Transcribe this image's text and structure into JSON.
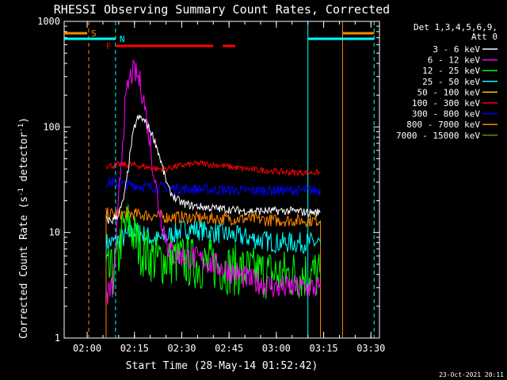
{
  "chart_data": {
    "type": "line",
    "title": "RHESSI Observing Summary Count Rates, Corrected",
    "ylabel": "Corrected Count Rate (s",
    "ylabel_sup": "-1",
    "ylabel_tail": " detector",
    "ylabel_sup2": "-1",
    "ylabel_close": ")",
    "xlabel": "Start Time (28-May-14 01:52:42)",
    "footer": "23-Oct-2021 20:11",
    "yscale": "log",
    "ylim": [
      1,
      1000
    ],
    "xlim": [
      "01:52:42",
      "03:32:42"
    ],
    "yticks": [
      {
        "value": 1,
        "label": "1"
      },
      {
        "value": 10,
        "label": "10"
      },
      {
        "value": 100,
        "label": "100"
      },
      {
        "value": 1000,
        "label": "1000"
      }
    ],
    "xticks": [
      {
        "value": "02:00",
        "label": "02:00"
      },
      {
        "value": "02:15",
        "label": "02:15"
      },
      {
        "value": "02:30",
        "label": "02:30"
      },
      {
        "value": "02:45",
        "label": "02:45"
      },
      {
        "value": "03:00",
        "label": "03:00"
      },
      {
        "value": "03:15",
        "label": "03:15"
      },
      {
        "value": "03:30",
        "label": "03:30"
      }
    ],
    "legend_header": [
      "Det 1,3,4,5,6,9,",
      "Att 0"
    ],
    "legend_position": "right",
    "series": [
      {
        "name": "3 - 6 keV",
        "color": "#ffffff",
        "x": [
          "02:06",
          "02:08",
          "02:09",
          "02:10",
          "02:11",
          "02:12",
          "02:13",
          "02:14",
          "02:15",
          "02:16",
          "02:17",
          "02:18",
          "02:19",
          "02:20",
          "02:21",
          "02:22",
          "02:23",
          "02:24",
          "02:25",
          "02:26",
          "02:28",
          "02:30",
          "02:33",
          "02:36",
          "02:40",
          "02:45",
          "02:50",
          "02:55",
          "03:00",
          "03:05",
          "03:10",
          "03:14"
        ],
        "y": [
          13,
          13,
          14,
          15,
          18,
          24,
          40,
          68,
          100,
          120,
          122,
          115,
          105,
          92,
          80,
          66,
          52,
          40,
          31,
          25,
          21,
          19,
          18,
          17.5,
          17,
          16.5,
          16,
          16,
          16,
          16,
          15.5,
          15.5
        ]
      },
      {
        "name": "6 - 12 keV",
        "color": "#ff00ff",
        "x": [
          "02:06",
          "02:08",
          "02:09",
          "02:10",
          "02:11",
          "02:12",
          "02:13",
          "02:14",
          "02:15",
          "02:16",
          "02:17",
          "02:18",
          "02:19",
          "02:20",
          "02:21",
          "02:22",
          "02:23",
          "02:24",
          "02:25",
          "02:26",
          "02:27",
          "02:28",
          "02:30",
          "02:33",
          "02:36",
          "02:40",
          "02:44",
          "02:48",
          "02:52",
          "02:56",
          "03:00",
          "03:05",
          "03:10",
          "03:14"
        ],
        "y": [
          2.5,
          3,
          6,
          20,
          60,
          150,
          250,
          315,
          330,
          300,
          250,
          180,
          110,
          70,
          40,
          25,
          16,
          12,
          9,
          7,
          6.5,
          6,
          6,
          5.8,
          5.5,
          5,
          4.5,
          4,
          3.5,
          3.3,
          3,
          3,
          3,
          3
        ]
      },
      {
        "name": "12 - 25 keV",
        "color": "#00ff00",
        "x": [
          "02:06",
          "02:08",
          "02:10",
          "02:11",
          "02:12",
          "02:13",
          "02:14",
          "02:15",
          "02:16",
          "02:17",
          "02:18",
          "02:20",
          "02:22",
          "02:25",
          "02:30",
          "02:35",
          "02:40",
          "02:45",
          "02:50",
          "02:55",
          "03:00",
          "03:05",
          "03:10",
          "03:14"
        ],
        "y": [
          4,
          4,
          6,
          10,
          11,
          12,
          11,
          9,
          8,
          7,
          6.5,
          6,
          5.5,
          5.5,
          5.5,
          5,
          5,
          4.5,
          4.3,
          4.1,
          4,
          4,
          4,
          4
        ]
      },
      {
        "name": "25 - 50 keV",
        "color": "#00ffff",
        "x": [
          "02:06",
          "02:08",
          "02:10",
          "02:12",
          "02:14",
          "02:16",
          "02:18",
          "02:20",
          "02:22",
          "02:25",
          "02:28",
          "02:32",
          "02:36",
          "02:40",
          "02:45",
          "02:50",
          "02:55",
          "03:00",
          "03:05",
          "03:10",
          "03:14"
        ],
        "y": [
          8,
          8,
          8.5,
          9,
          10,
          10,
          9.5,
          9,
          8.5,
          9,
          10,
          11,
          10.5,
          10,
          9.5,
          9,
          8.5,
          8,
          8,
          8,
          8
        ]
      },
      {
        "name": "50 - 100 keV",
        "color": "#ffcc00",
        "x": [],
        "y": []
      },
      {
        "name": "100 - 300 keV",
        "color": "#ff0000",
        "x": [
          "02:06",
          "02:08",
          "02:10",
          "02:12",
          "02:14",
          "02:16",
          "02:18",
          "02:20",
          "02:22",
          "02:25",
          "02:28",
          "02:32",
          "02:36",
          "02:40",
          "02:45",
          "02:50",
          "02:55",
          "03:00",
          "03:05",
          "03:10",
          "03:14"
        ],
        "y": [
          43,
          43,
          44,
          44,
          44,
          43,
          42,
          41,
          40,
          40,
          42,
          44,
          45,
          44,
          42,
          40,
          39,
          38,
          37,
          37,
          37
        ]
      },
      {
        "name": "300 - 800 keV",
        "color": "#0000ff",
        "x": [
          "02:06",
          "02:08",
          "02:10",
          "02:14",
          "02:20",
          "02:25",
          "02:30",
          "02:40",
          "02:50",
          "03:00",
          "03:05",
          "03:10",
          "03:14"
        ],
        "y": [
          30,
          30,
          29,
          28,
          27,
          26.5,
          26,
          25.5,
          25,
          25,
          25,
          25,
          25
        ]
      },
      {
        "name": "800 - 7000 keV",
        "color": "#ff8800",
        "x": [
          "02:06",
          "02:08",
          "02:10",
          "02:14",
          "02:20",
          "02:25",
          "02:30",
          "02:40",
          "02:50",
          "03:00",
          "03:05",
          "03:10",
          "03:14"
        ],
        "y": [
          15,
          15,
          15,
          15,
          14.5,
          14,
          14,
          13.5,
          13.5,
          13,
          13,
          13,
          13
        ]
      },
      {
        "name": "7000 - 15000 keV",
        "color": "#808000",
        "x": [],
        "y": []
      }
    ],
    "flags": [
      {
        "label": "S",
        "color": "#ff8800",
        "segments": [
          [
            "01:52:42",
            "02:00"
          ],
          [
            "03:21",
            "03:31"
          ]
        ]
      },
      {
        "label": "N",
        "color": "#00ffff",
        "segments": [
          [
            "01:52:42",
            "02:09"
          ],
          [
            "03:10",
            "03:31"
          ]
        ]
      },
      {
        "label": "F",
        "color": "#ff0000",
        "segments": [
          [
            "02:09",
            "02:40"
          ],
          [
            "02:43",
            "02:47"
          ]
        ]
      }
    ],
    "vertical_markers": [
      {
        "time": "02:00:30",
        "color": "#ff8800",
        "style": "dashed"
      },
      {
        "time": "02:09",
        "color": "#00ffff",
        "style": "dashed"
      },
      {
        "time": "03:10",
        "color": "#00ffff",
        "style": "solid"
      },
      {
        "time": "03:21",
        "color": "#ff8800",
        "style": "solid"
      },
      {
        "time": "03:31",
        "color": "#00ffff",
        "style": "dashed"
      }
    ],
    "data_window": [
      "02:06",
      "03:14"
    ]
  }
}
